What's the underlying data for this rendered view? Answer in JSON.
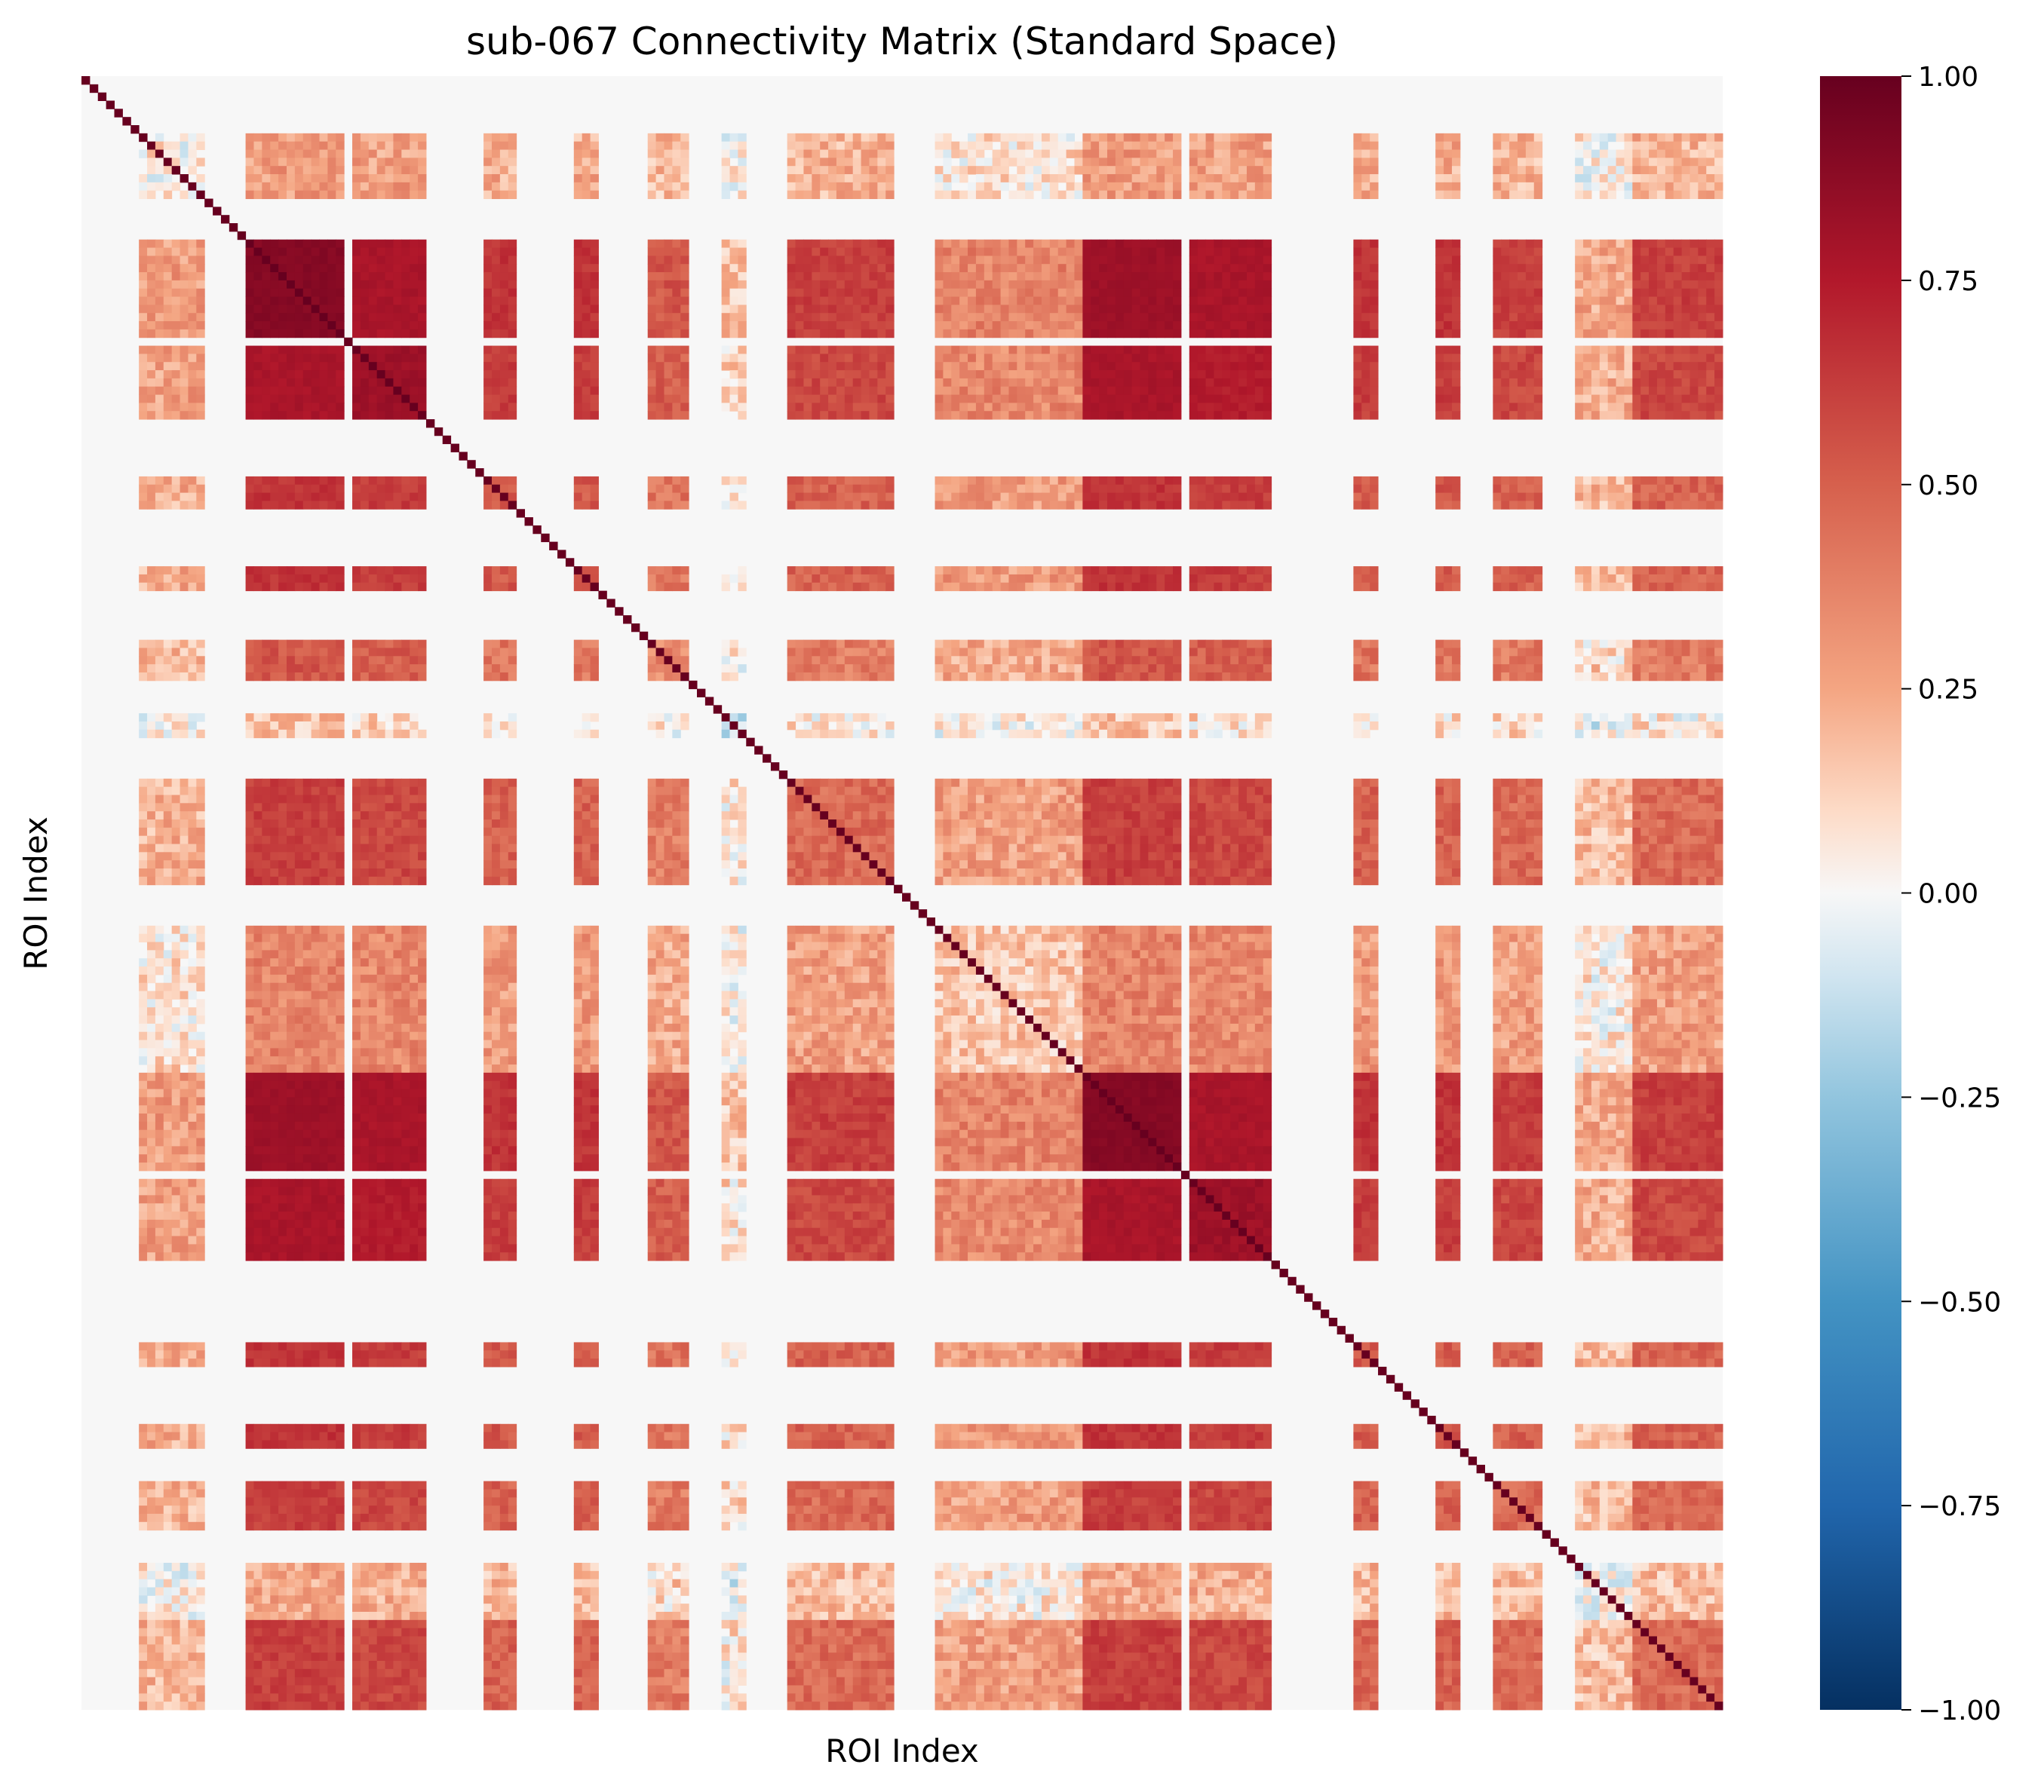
{
  "chart_data": {
    "type": "heatmap",
    "title": "sub-067 Connectivity Matrix (Standard Space)",
    "xlabel": "ROI Index",
    "ylabel": "ROI Index",
    "n_rois": 200,
    "colormap": "RdBu_r",
    "colorbar": {
      "vmin": -1.0,
      "vmax": 1.0,
      "ticks": [
        1.0,
        0.75,
        0.5,
        0.25,
        0.0,
        -0.25,
        -0.5,
        -0.75,
        -1.0
      ],
      "tick_labels": [
        "1.00",
        "0.75",
        "0.50",
        "0.25",
        "0.00",
        "−0.25",
        "−0.50",
        "−0.75",
        "−1.00"
      ]
    },
    "diagonal_value": 1.0,
    "blocks": [
      {
        "roi_start": 0,
        "roi_end": 7,
        "active": false
      },
      {
        "roi_start": 7,
        "roi_end": 15,
        "active": true,
        "weight": 0.35
      },
      {
        "roi_start": 15,
        "roi_end": 20,
        "active": false
      },
      {
        "roi_start": 20,
        "roi_end": 32,
        "active": true,
        "weight": 1.0
      },
      {
        "roi_start": 32,
        "roi_end": 33,
        "active": false
      },
      {
        "roi_start": 33,
        "roi_end": 42,
        "active": true,
        "weight": 0.95
      },
      {
        "roi_start": 42,
        "roi_end": 49,
        "active": false
      },
      {
        "roi_start": 49,
        "roi_end": 53,
        "active": true,
        "weight": 0.8
      },
      {
        "roi_start": 53,
        "roi_end": 60,
        "active": false
      },
      {
        "roi_start": 60,
        "roi_end": 63,
        "active": true,
        "weight": 0.8
      },
      {
        "roi_start": 63,
        "roi_end": 69,
        "active": false
      },
      {
        "roi_start": 69,
        "roi_end": 74,
        "active": true,
        "weight": 0.65
      },
      {
        "roi_start": 74,
        "roi_end": 78,
        "active": false
      },
      {
        "roi_start": 78,
        "roi_end": 81,
        "active": true,
        "weight": 0.2
      },
      {
        "roi_start": 81,
        "roi_end": 86,
        "active": false
      },
      {
        "roi_start": 86,
        "roi_end": 99,
        "active": true,
        "weight": 0.75
      },
      {
        "roi_start": 99,
        "roi_end": 104,
        "active": false
      },
      {
        "roi_start": 104,
        "roi_end": 122,
        "active": true,
        "weight": 0.45
      },
      {
        "roi_start": 122,
        "roi_end": 134,
        "active": true,
        "weight": 1.0
      },
      {
        "roi_start": 134,
        "roi_end": 135,
        "active": false
      },
      {
        "roi_start": 135,
        "roi_end": 145,
        "active": true,
        "weight": 0.95
      },
      {
        "roi_start": 145,
        "roi_end": 155,
        "active": false
      },
      {
        "roi_start": 155,
        "roi_end": 158,
        "active": true,
        "weight": 0.8
      },
      {
        "roi_start": 158,
        "roi_end": 165,
        "active": false
      },
      {
        "roi_start": 165,
        "roi_end": 168,
        "active": true,
        "weight": 0.8
      },
      {
        "roi_start": 168,
        "roi_end": 172,
        "active": false
      },
      {
        "roi_start": 172,
        "roi_end": 178,
        "active": true,
        "weight": 0.75
      },
      {
        "roi_start": 178,
        "roi_end": 182,
        "active": false
      },
      {
        "roi_start": 182,
        "roi_end": 189,
        "active": true,
        "weight": 0.3
      },
      {
        "roi_start": 189,
        "roi_end": 200,
        "active": true,
        "weight": 0.75
      }
    ]
  }
}
